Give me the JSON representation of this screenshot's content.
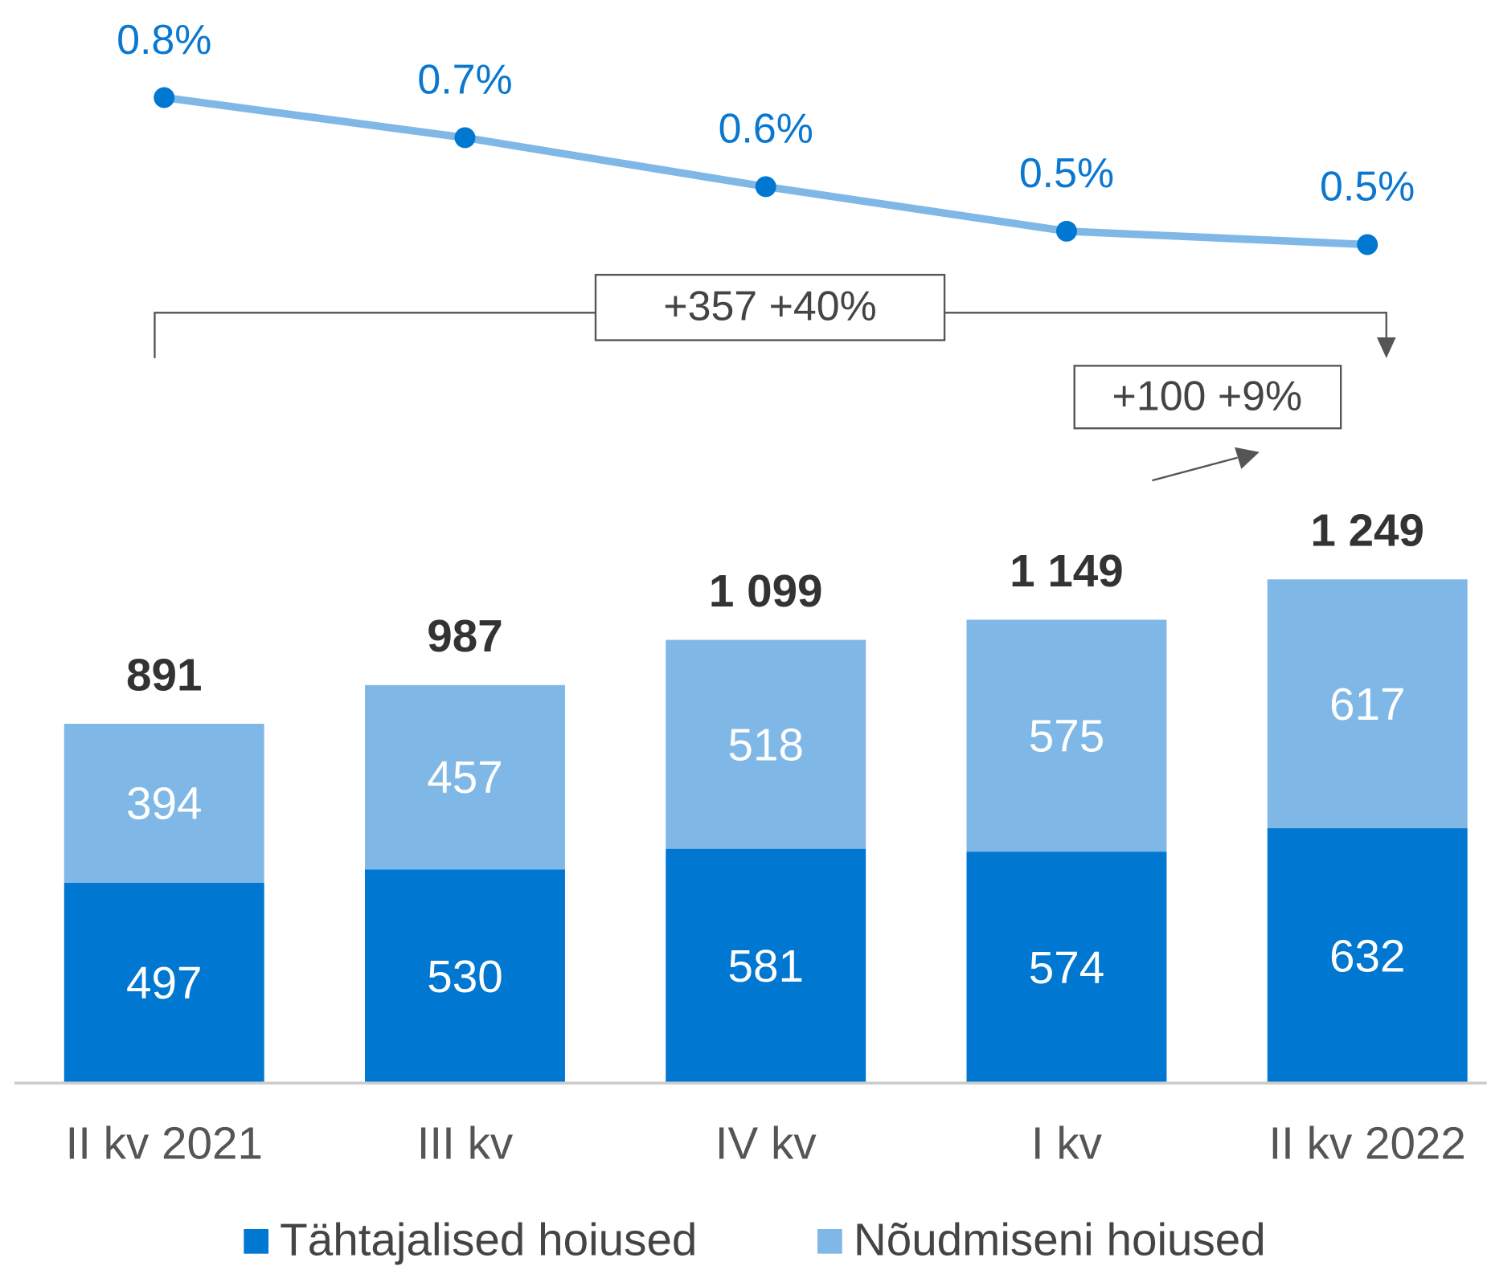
{
  "chart_data": {
    "type": "bar",
    "stacked": true,
    "categories": [
      "II kv 2021",
      "III kv",
      "IV kv",
      "I kv",
      "II kv 2022"
    ],
    "series": [
      {
        "name": "Tähtajalised hoiused",
        "color": "#0077d1",
        "values": [
          497,
          530,
          581,
          574,
          632
        ]
      },
      {
        "name": "Nõudmiseni hoiused",
        "color": "#7fb8e6",
        "values": [
          394,
          457,
          518,
          575,
          617
        ]
      },
      {
        "type": "line",
        "axis": "y2",
        "color": "#7fb8e6",
        "marker_color": "#0077d1",
        "values": [
          0.8,
          0.71,
          0.6,
          0.5,
          0.47
        ],
        "value_labels": [
          "0.8%",
          "0.7%",
          "0.6%",
          "0.5%",
          "0.5%"
        ]
      }
    ],
    "totals": [
      891,
      987,
      1099,
      1149,
      1249
    ],
    "total_labels": [
      "891",
      "987",
      "1 099",
      "1 149",
      "1 249"
    ],
    "ylim": [
      0,
      1250
    ],
    "y2lim": [
      0,
      1
    ],
    "annotations": [
      "+357 +40%",
      "+100 +9%"
    ],
    "legend": "bottom"
  }
}
